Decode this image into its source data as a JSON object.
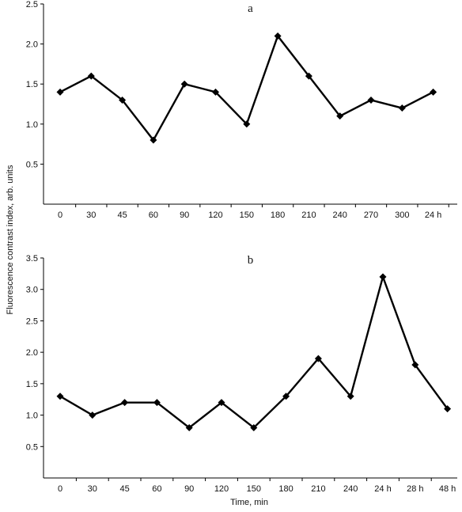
{
  "figure": {
    "ylabel": "Fluorescence contrast index, arb. units",
    "xlabel": "Time, min",
    "colors": {
      "line": "#000000",
      "axis": "#000000",
      "background": "#ffffff"
    }
  },
  "chart_data": [
    {
      "type": "line",
      "panel_label": "a",
      "categories": [
        "0",
        "30",
        "45",
        "60",
        "90",
        "120",
        "150",
        "180",
        "210",
        "240",
        "270",
        "300",
        "24 h"
      ],
      "values": [
        1.4,
        1.6,
        1.3,
        0.8,
        1.5,
        1.4,
        1.0,
        2.1,
        1.6,
        1.1,
        1.3,
        1.2,
        1.4
      ],
      "ylim": [
        0,
        2.5
      ],
      "yticks": [
        "0.5",
        "1.0",
        "1.5",
        "2.0",
        "2.5"
      ],
      "marker": "diamond",
      "grid": false,
      "legend": "none"
    },
    {
      "type": "line",
      "panel_label": "b",
      "categories": [
        "0",
        "30",
        "45",
        "60",
        "90",
        "120",
        "150",
        "180",
        "210",
        "240",
        "24 h",
        "28 h",
        "48 h"
      ],
      "values": [
        1.3,
        1.0,
        1.2,
        1.2,
        0.8,
        1.2,
        0.8,
        1.3,
        1.9,
        1.3,
        3.2,
        1.8,
        1.1
      ],
      "ylim": [
        0,
        3.5
      ],
      "yticks": [
        "0.5",
        "1.0",
        "1.5",
        "2.0",
        "2.5",
        "3.0",
        "3.5"
      ],
      "marker": "diamond",
      "grid": false,
      "legend": "none"
    }
  ]
}
